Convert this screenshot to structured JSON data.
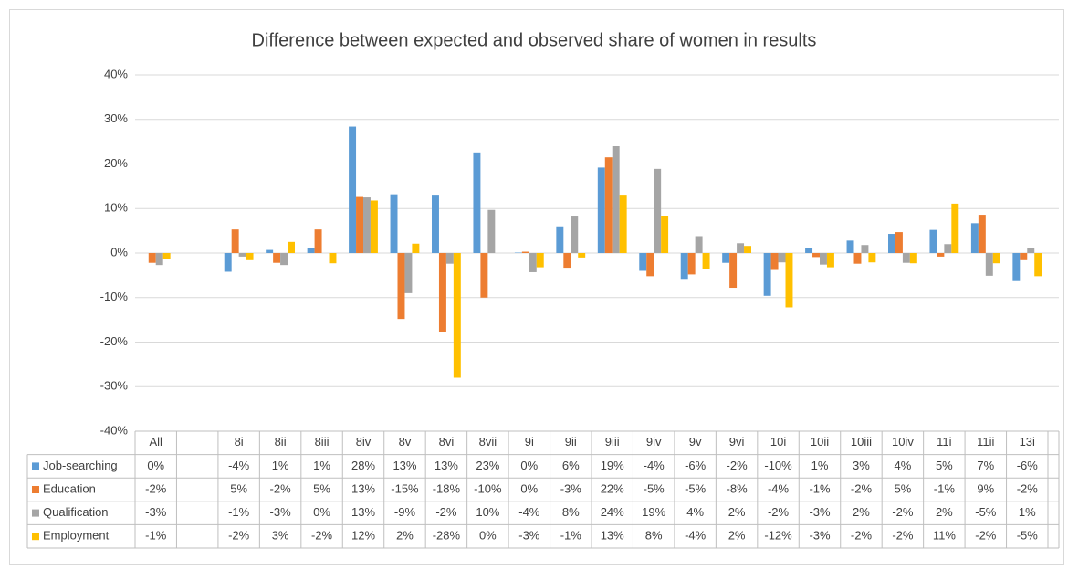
{
  "chart_data": {
    "type": "bar",
    "title": "Difference between expected and observed share of women in results",
    "categories": [
      "All",
      null,
      "8i",
      "8ii",
      "8iii",
      "8iv",
      "8v",
      "8vi",
      "8vii",
      "9i",
      "9ii",
      "9iii",
      "9iv",
      "9v",
      "9vi",
      "10i",
      "10ii",
      "10iii",
      "10iv",
      "11i",
      "11ii",
      "13i"
    ],
    "ylim": [
      -40,
      40
    ],
    "yticks": [
      {
        "value": -40,
        "label": "-40%"
      },
      {
        "value": -30,
        "label": "-30%"
      },
      {
        "value": -20,
        "label": "-20%"
      },
      {
        "value": -10,
        "label": "-10%"
      },
      {
        "value": 0,
        "label": "0%"
      },
      {
        "value": 10,
        "label": "10%"
      },
      {
        "value": 20,
        "label": "20%"
      },
      {
        "value": 30,
        "label": "30%"
      },
      {
        "value": 40,
        "label": "40%"
      }
    ],
    "grid": true,
    "series": [
      {
        "name": "Job-searching",
        "color": "#5b9bd5",
        "values": [
          0,
          null,
          -4.2,
          0.7,
          1.2,
          28.4,
          13.2,
          12.9,
          22.6,
          0.1,
          6.0,
          19.2,
          -4.0,
          -5.8,
          -2.2,
          -9.6,
          1.2,
          2.8,
          4.3,
          5.2,
          6.7,
          -6.3
        ],
        "value_labels": [
          "0%",
          null,
          "-4%",
          "1%",
          "1%",
          "28%",
          "13%",
          "13%",
          "23%",
          "0%",
          "6%",
          "19%",
          "-4%",
          "-6%",
          "-2%",
          "-10%",
          "1%",
          "3%",
          "4%",
          "5%",
          "7%",
          "-6%"
        ]
      },
      {
        "name": "Education",
        "color": "#ed7d31",
        "values": [
          -2.2,
          null,
          5.3,
          -2.2,
          5.3,
          12.6,
          -14.8,
          -17.8,
          -10.0,
          0.3,
          -3.3,
          21.5,
          -5.2,
          -4.8,
          -7.8,
          -3.8,
          -0.9,
          -2.4,
          4.7,
          -0.8,
          8.6,
          -1.6
        ],
        "value_labels": [
          "-2%",
          null,
          "5%",
          "-2%",
          "5%",
          "13%",
          "-15%",
          "-18%",
          "-10%",
          "0%",
          "-3%",
          "22%",
          "-5%",
          "-5%",
          "-8%",
          "-4%",
          "-1%",
          "-2%",
          "5%",
          "-1%",
          "9%",
          "-2%"
        ]
      },
      {
        "name": "Qualification",
        "color": "#a5a5a5",
        "values": [
          -2.7,
          null,
          -0.8,
          -2.7,
          0,
          12.5,
          -9.0,
          -2.4,
          9.7,
          -4.3,
          8.2,
          24.0,
          18.9,
          3.8,
          2.2,
          -2.1,
          -2.6,
          1.8,
          -2.2,
          2.0,
          -5.1,
          1.2
        ],
        "value_labels": [
          "-3%",
          null,
          "-1%",
          "-3%",
          "0%",
          "13%",
          "-9%",
          "-2%",
          "10%",
          "-4%",
          "8%",
          "24%",
          "19%",
          "4%",
          "2%",
          "-2%",
          "-3%",
          "2%",
          "-2%",
          "2%",
          "-5%",
          "1%"
        ]
      },
      {
        "name": "Employment",
        "color": "#ffc000",
        "values": [
          -1.3,
          null,
          -1.6,
          2.5,
          -2.3,
          11.8,
          2.1,
          -28.0,
          0,
          -3.2,
          -1.0,
          12.9,
          8.3,
          -3.6,
          1.6,
          -12.2,
          -3.2,
          -2.1,
          -2.3,
          11.1,
          -2.3,
          -5.2
        ],
        "value_labels": [
          "-1%",
          null,
          "-2%",
          "3%",
          "-2%",
          "12%",
          "2%",
          "-28%",
          "0%",
          "-3%",
          "-1%",
          "13%",
          "8%",
          "-4%",
          "2%",
          "-12%",
          "-3%",
          "-2%",
          "-2%",
          "11%",
          "-2%",
          "-5%"
        ]
      }
    ]
  }
}
